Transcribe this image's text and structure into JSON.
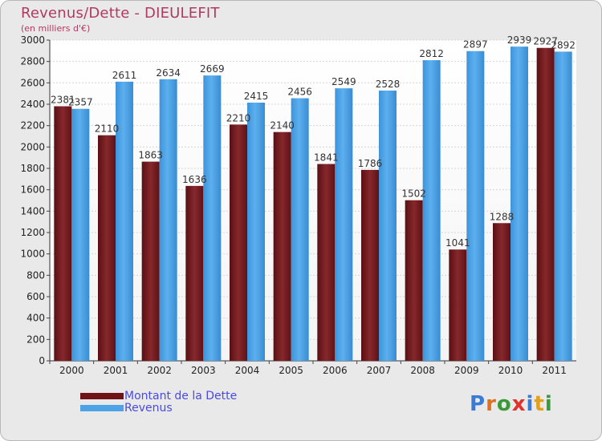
{
  "chart_data": {
    "type": "bar",
    "title": "Revenus/Dette - DIEULEFIT",
    "subtitle": "(en milliers d'€)",
    "categories": [
      "2000",
      "2001",
      "2002",
      "2003",
      "2004",
      "2005",
      "2006",
      "2007",
      "2008",
      "2009",
      "2010",
      "2011"
    ],
    "series": [
      {
        "name": "Montant de la Dette",
        "color": "#7a1f24",
        "values": [
          2381,
          2110,
          1863,
          1636,
          2210,
          2140,
          1841,
          1786,
          1502,
          1041,
          1288,
          2927
        ],
        "labels": [
          "2381",
          "2110",
          "1863",
          "1636",
          "2210",
          "2140",
          "1841",
          "1786",
          "1502",
          "1041",
          "1288",
          "2927"
        ]
      },
      {
        "name": "Revenus",
        "color": "#4da3e6",
        "values": [
          2357,
          2611,
          2634,
          2669,
          2415,
          2456,
          2549,
          2528,
          2812,
          2897,
          2939,
          2892
        ],
        "labels": [
          "2357",
          "2611",
          "2634",
          "2669",
          "2415",
          "2456",
          "2549",
          "2528",
          "2812",
          "2897",
          "2939",
          "2892"
        ]
      }
    ],
    "ylim": [
      0,
      3000
    ],
    "yticks": [
      0,
      200,
      400,
      600,
      800,
      1000,
      1200,
      1400,
      1600,
      1800,
      2000,
      2200,
      2400,
      2600,
      2800,
      3000
    ],
    "grid": true,
    "legend_position": "bottom-left"
  },
  "logo": {
    "letters": [
      {
        "char": "P",
        "color": "#3a7bd5"
      },
      {
        "char": "r",
        "color": "#e07020"
      },
      {
        "char": "o",
        "color": "#3a9a3a"
      },
      {
        "char": "x",
        "color": "#e2302a"
      },
      {
        "char": "i",
        "color": "#3a7bd5"
      },
      {
        "char": "t",
        "color": "#e0a020"
      },
      {
        "char": "i",
        "color": "#3a9a3a"
      }
    ]
  }
}
